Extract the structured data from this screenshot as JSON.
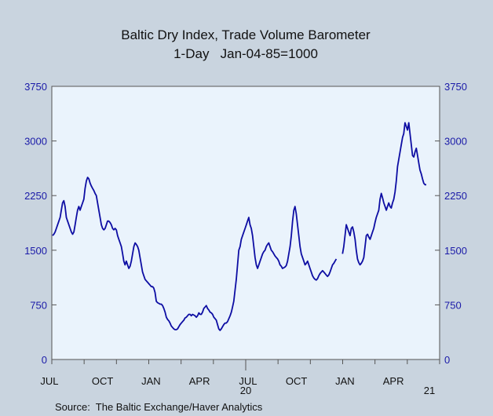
{
  "chart_data": {
    "type": "line",
    "title": "Baltic Dry Index, Trade Volume Barometer",
    "subtitle": "1-Day   Jan-04-85=1000",
    "source": "Source:  The Baltic Exchange/Haver Analytics",
    "ylim": [
      0,
      3750
    ],
    "y_ticks": [
      "3750",
      "3000",
      "2250",
      "1500",
      "750",
      "0"
    ],
    "x_ticks": [
      "JUL",
      "OCT",
      "JAN",
      "APR",
      "JUL",
      "OCT",
      "JAN",
      "APR"
    ],
    "year_labels": [
      "20",
      "21"
    ],
    "grid": false,
    "colors": {
      "line": "#0d0da3",
      "plot_bg": "#eaf3fc",
      "outer_bg": "#c9d4df",
      "axis_text": "#1a1aa8"
    },
    "series": [
      {
        "values": [
          1700,
          1720,
          1750,
          1800,
          1850,
          1900,
          1950,
          2050,
          2150,
          2180,
          2100,
          1950,
          1900,
          1850,
          1800,
          1750,
          1720,
          1750,
          1850,
          1950,
          2050,
          2100,
          2050,
          2100,
          2150,
          2200,
          2350,
          2450,
          2500,
          2480,
          2420,
          2380,
          2350,
          2320,
          2280,
          2250,
          2150,
          2050,
          1950,
          1850,
          1800,
          1780,
          1800,
          1850,
          1900,
          1900,
          1880,
          1850,
          1800,
          1780,
          1800,
          1780,
          1700,
          1650,
          1600,
          1550,
          1450,
          1350,
          1300,
          1350,
          1300,
          1250,
          1280,
          1350,
          1450,
          1550,
          1600,
          1580,
          1550,
          1500,
          1400,
          1300,
          1200,
          1150,
          1100,
          1080,
          1060,
          1040,
          1020,
          1000,
          1000,
          980,
          920,
          800,
          780,
          770,
          760,
          760,
          740,
          700,
          650,
          580,
          550,
          530,
          500,
          460,
          440,
          420,
          410,
          410,
          420,
          450,
          480,
          500,
          520,
          540,
          570,
          580,
          600,
          620,
          620,
          600,
          620,
          610,
          600,
          580,
          600,
          640,
          620,
          620,
          650,
          700,
          720,
          740,
          700,
          680,
          650,
          640,
          620,
          580,
          560,
          540,
          480,
          420,
          400,
          420,
          450,
          480,
          500,
          500,
          520,
          560,
          600,
          650,
          720,
          800,
          950,
          1100,
          1300,
          1500,
          1550,
          1650,
          1700,
          1750,
          1800,
          1850,
          1900,
          1950,
          1850,
          1800,
          1700,
          1550,
          1400,
          1300,
          1250,
          1300,
          1350,
          1400,
          1450,
          1480,
          1500,
          1550,
          1580,
          1600,
          1550,
          1500,
          1480,
          1450,
          1420,
          1400,
          1380,
          1350,
          1300,
          1280,
          1250,
          1260,
          1270,
          1290,
          1350,
          1450,
          1550,
          1700,
          1900,
          2050,
          2100,
          2000,
          1850,
          1700,
          1550,
          1450,
          1400,
          1350,
          1300,
          1320,
          1350,
          1300,
          1250,
          1200,
          1150,
          1120,
          1100,
          1090,
          1110,
          1150,
          1180,
          1200,
          1220,
          1200,
          1180,
          1160,
          1140,
          1160,
          1200,
          1250,
          1300,
          1320,
          1350,
          1380,
          null,
          null,
          null,
          null,
          1450,
          1550,
          1700,
          1850,
          1800,
          1750,
          1700,
          1800,
          1820,
          1750,
          1650,
          1500,
          1380,
          1330,
          1300,
          1320,
          1350,
          1400,
          1550,
          1700,
          1720,
          1680,
          1650,
          1700,
          1750,
          1800,
          1880,
          1950,
          2000,
          2050,
          2200,
          2280,
          2220,
          2150,
          2100,
          2050,
          2100,
          2150,
          2100,
          2080,
          2150,
          2200,
          2300,
          2450,
          2650,
          2750,
          2850,
          2950,
          3050,
          3100,
          3250,
          3200,
          3150,
          3250,
          3100,
          2950,
          2800,
          2780,
          2850,
          2900,
          2800,
          2700,
          2600,
          2550,
          2480,
          2420,
          2400,
          2400
        ]
      }
    ]
  }
}
